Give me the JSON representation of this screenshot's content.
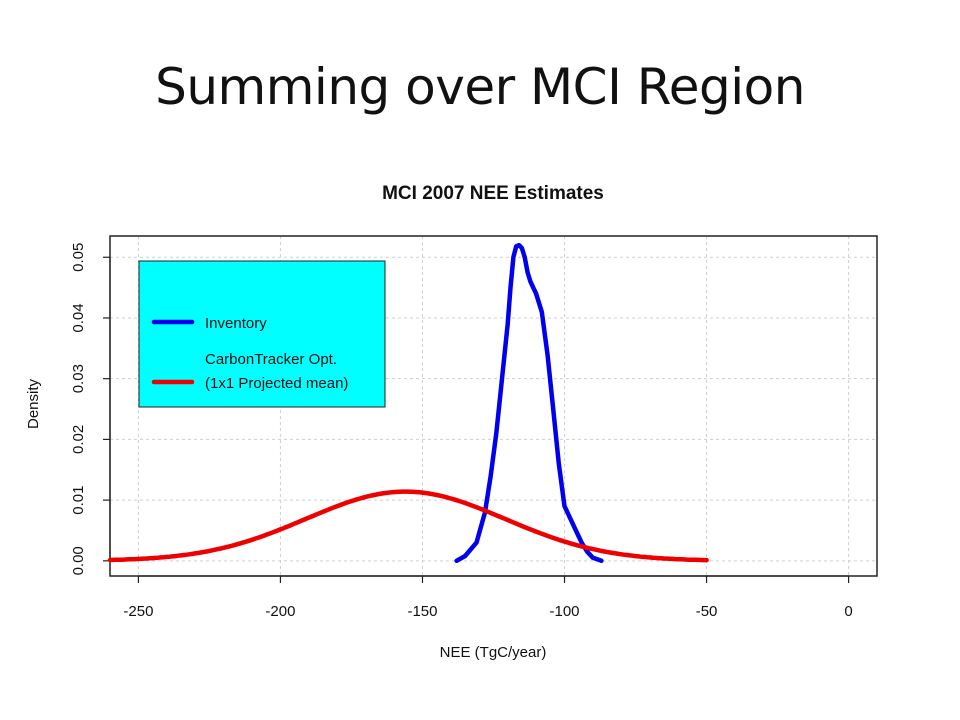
{
  "slide": {
    "title": "Summing over MCI Region"
  },
  "chart_data": {
    "type": "line",
    "title": "MCI 2007 NEE Estimates",
    "xlabel": "NEE (TgC/year)",
    "ylabel": "Density",
    "xlim": [
      -260,
      10
    ],
    "ylim": [
      -0.0025,
      0.0535
    ],
    "xticks": [
      -250,
      -200,
      -150,
      -100,
      -50,
      0
    ],
    "yticks": [
      0.0,
      0.01,
      0.02,
      0.03,
      0.04,
      0.05
    ],
    "ytick_labels": [
      "0.00",
      "0.01",
      "0.02",
      "0.03",
      "0.04",
      "0.05"
    ],
    "grid": true,
    "legend_position": "top-left",
    "legend_background": "#00FFFF",
    "series": [
      {
        "name": "Inventory",
        "color": "#0000EE",
        "x": [
          -138,
          -135,
          -131,
          -128,
          -126,
          -124,
          -122,
          -120,
          -119,
          -118,
          -117,
          -116,
          -115,
          -114,
          -113,
          -112,
          -110,
          -108,
          -106,
          -104,
          -102,
          -100,
          -98,
          -96,
          -94,
          -92,
          -90,
          -87
        ],
        "y": [
          0.0,
          0.0008,
          0.003,
          0.008,
          0.014,
          0.021,
          0.03,
          0.039,
          0.045,
          0.05,
          0.0518,
          0.052,
          0.0515,
          0.05,
          0.0475,
          0.046,
          0.044,
          0.041,
          0.034,
          0.025,
          0.016,
          0.009,
          0.007,
          0.005,
          0.003,
          0.0015,
          0.0005,
          0.0
        ]
      },
      {
        "name": "CarbonTracker Opt.\n(1x1 Projected mean)",
        "legend_lines": [
          "CarbonTracker Opt.",
          "(1x1 Projected mean)"
        ],
        "color": "#EE0000",
        "mean": -156,
        "sd": 35,
        "x_range": [
          -260,
          -50
        ]
      }
    ]
  }
}
